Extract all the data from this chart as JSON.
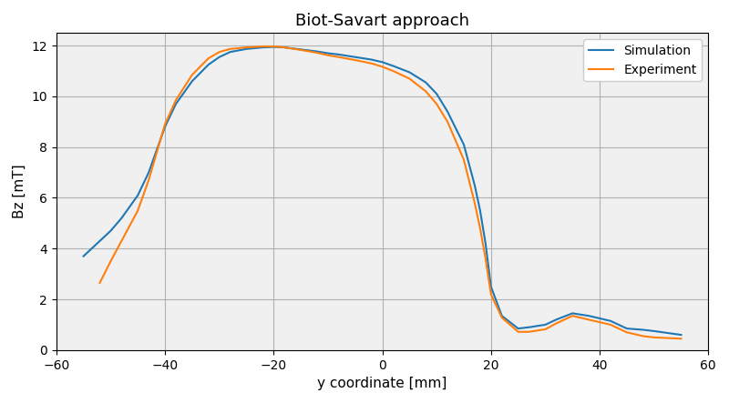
{
  "title": "Biot-Savart approach",
  "xlabel": "y coordinate [mm]",
  "ylabel": "Bz [mT]",
  "xlim": [
    -60,
    60
  ],
  "ylim": [
    0,
    12.5
  ],
  "grid": true,
  "simulation_color": "#1f77b4",
  "experiment_color": "#ff7f0e",
  "simulation_label": "Simulation",
  "experiment_label": "Experiment",
  "sim_x": [
    -55,
    -50,
    -48,
    -45,
    -43,
    -40,
    -38,
    -35,
    -32,
    -30,
    -28,
    -25,
    -22,
    -20,
    -18,
    -15,
    -12,
    -10,
    -8,
    -5,
    -2,
    0,
    2,
    5,
    8,
    10,
    12,
    15,
    17,
    18,
    19,
    20,
    22,
    25,
    27,
    30,
    32,
    35,
    38,
    40,
    42,
    45,
    48,
    50,
    55
  ],
  "sim_y": [
    3.7,
    4.7,
    5.2,
    6.1,
    7.0,
    8.8,
    9.7,
    10.6,
    11.25,
    11.55,
    11.75,
    11.87,
    11.93,
    11.95,
    11.93,
    11.85,
    11.77,
    11.7,
    11.65,
    11.55,
    11.45,
    11.35,
    11.2,
    10.95,
    10.55,
    10.1,
    9.4,
    8.1,
    6.5,
    5.5,
    4.2,
    2.5,
    1.35,
    0.85,
    0.9,
    1.0,
    1.2,
    1.45,
    1.35,
    1.25,
    1.15,
    0.85,
    0.8,
    0.75,
    0.6
  ],
  "exp_x": [
    -52,
    -50,
    -48,
    -45,
    -43,
    -40,
    -38,
    -35,
    -32,
    -30,
    -28,
    -25,
    -22,
    -20,
    -18,
    -15,
    -12,
    -10,
    -8,
    -5,
    -2,
    0,
    2,
    5,
    8,
    10,
    12,
    15,
    17,
    18,
    19,
    20,
    22,
    25,
    27,
    30,
    32,
    35,
    38,
    40,
    42,
    45,
    48,
    50,
    55
  ],
  "exp_y": [
    2.65,
    3.5,
    4.3,
    5.5,
    6.7,
    8.9,
    9.85,
    10.85,
    11.5,
    11.75,
    11.87,
    11.93,
    11.97,
    11.97,
    11.93,
    11.83,
    11.72,
    11.62,
    11.55,
    11.43,
    11.3,
    11.17,
    11.0,
    10.7,
    10.2,
    9.7,
    9.0,
    7.5,
    5.8,
    4.8,
    3.6,
    2.2,
    1.28,
    0.72,
    0.72,
    0.82,
    1.05,
    1.35,
    1.2,
    1.1,
    1.0,
    0.7,
    0.55,
    0.5,
    0.45
  ],
  "yticks": [
    0,
    2,
    4,
    6,
    8,
    10,
    12
  ],
  "xticks": [
    -60,
    -40,
    -20,
    0,
    20,
    40,
    60
  ]
}
